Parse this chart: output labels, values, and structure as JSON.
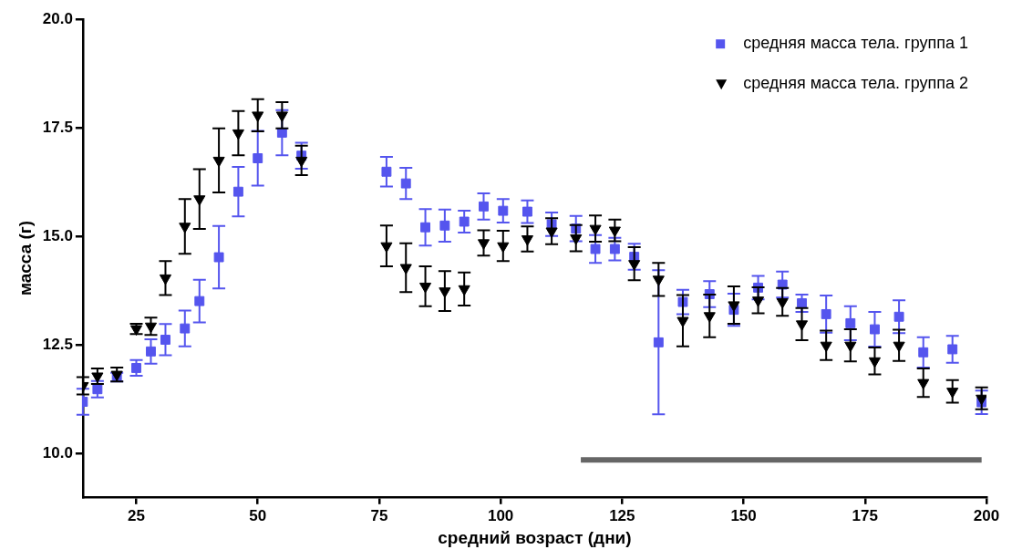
{
  "chart_data": {
    "type": "scatter",
    "xlabel": "средний возраст (дни)",
    "ylabel": "масса (г)",
    "xlim": [
      14,
      200
    ],
    "xticks": [
      25,
      50,
      75,
      100,
      125,
      150,
      175,
      200
    ],
    "ylim": [
      9,
      20
    ],
    "yticks": [
      {
        "value": 10,
        "label": "10.0"
      },
      {
        "value": 12.5,
        "label": "12.5"
      },
      {
        "value": 15,
        "label": "15.0"
      },
      {
        "value": 17.5,
        "label": "17.5"
      },
      {
        "value": 20,
        "label": "20.0"
      }
    ],
    "grid": false,
    "legend": "top right",
    "series": [
      {
        "name": "средняя масса тела. группа 1",
        "marker": "square",
        "color": "#5555ee",
        "x": [
          14,
          17,
          21,
          25,
          28,
          31,
          35,
          38,
          42,
          46,
          50,
          55,
          59,
          76.5,
          80.5,
          84.5,
          88.5,
          92.5,
          96.5,
          100.5,
          105.5,
          110.5,
          115.5,
          119.5,
          123.5,
          127.5,
          132.5,
          137.5,
          143,
          148,
          153,
          158,
          162,
          167,
          172,
          177,
          182,
          187,
          193,
          199
        ],
        "values": [
          11.19,
          11.48,
          11.76,
          11.97,
          12.35,
          12.62,
          12.88,
          13.51,
          14.52,
          16.03,
          16.8,
          17.39,
          16.86,
          16.49,
          16.22,
          15.21,
          15.25,
          15.34,
          15.69,
          15.59,
          15.57,
          15.28,
          15.18,
          14.71,
          14.71,
          14.53,
          12.56,
          13.49,
          13.67,
          13.31,
          13.82,
          13.89,
          13.46,
          13.21,
          13.0,
          12.86,
          13.15,
          12.33,
          12.4,
          11.18
        ],
        "errors": [
          0.3,
          0.19,
          0.1,
          0.18,
          0.28,
          0.36,
          0.41,
          0.49,
          0.72,
          0.57,
          0.63,
          0.52,
          0.3,
          0.34,
          0.36,
          0.42,
          0.37,
          0.25,
          0.3,
          0.27,
          0.26,
          0.27,
          0.29,
          0.32,
          0.26,
          0.3,
          1.66,
          0.28,
          0.3,
          0.37,
          0.27,
          0.3,
          0.2,
          0.43,
          0.39,
          0.4,
          0.38,
          0.35,
          0.31,
          0.27
        ]
      },
      {
        "name": "средняя масса тела. группа 2",
        "marker": "triangle",
        "color": "#000000",
        "x": [
          14,
          17,
          21,
          25,
          28,
          31,
          35,
          38,
          42,
          46,
          50,
          55,
          59,
          76.5,
          80.5,
          84.5,
          88.5,
          92.5,
          96.5,
          100.5,
          105.5,
          110.5,
          115.5,
          119.5,
          123.5,
          127.5,
          132.5,
          137.5,
          143,
          148,
          153,
          158,
          162,
          167,
          172,
          177,
          182,
          187,
          193,
          199
        ],
        "values": [
          11.56,
          11.78,
          11.82,
          12.87,
          12.93,
          14.04,
          15.23,
          15.86,
          16.75,
          17.38,
          17.79,
          17.79,
          16.75,
          14.78,
          14.28,
          13.85,
          13.74,
          13.79,
          14.85,
          14.78,
          14.94,
          15.12,
          14.96,
          15.18,
          15.14,
          14.37,
          14.01,
          13.06,
          13.17,
          13.42,
          13.53,
          13.49,
          12.98,
          12.49,
          12.49,
          12.13,
          12.49,
          11.63,
          11.43,
          11.27
        ],
        "errors": [
          0.2,
          0.18,
          0.16,
          0.12,
          0.2,
          0.39,
          0.63,
          0.69,
          0.74,
          0.51,
          0.37,
          0.3,
          0.34,
          0.47,
          0.56,
          0.46,
          0.46,
          0.38,
          0.29,
          0.35,
          0.29,
          0.3,
          0.3,
          0.3,
          0.25,
          0.38,
          0.38,
          0.59,
          0.49,
          0.43,
          0.3,
          0.32,
          0.37,
          0.34,
          0.37,
          0.31,
          0.36,
          0.33,
          0.26,
          0.25
        ]
      },
      {
        "type": "line",
        "marker": "none",
        "color": "#666666",
        "x": [
          116.5,
          199
        ],
        "values": [
          9.85,
          9.85
        ]
      }
    ]
  }
}
